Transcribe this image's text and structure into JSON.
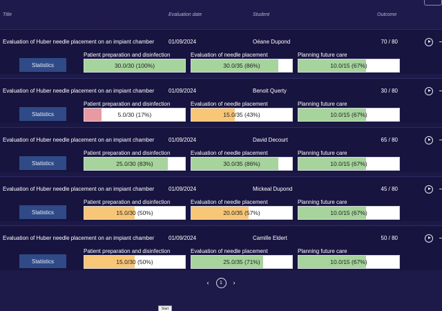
{
  "header": {
    "title": "Title",
    "date": "Evaluation date",
    "student": "Student",
    "outcome": "Outcome"
  },
  "statistics_label": "Statistics",
  "criteria_labels": [
    "Patient preparation and disinfection",
    "Evaluation of needle placement",
    "Planning future care"
  ],
  "colors": {
    "good": "#a6d49c",
    "medium": "#f8c677",
    "low": "#e89aa2"
  },
  "rows": [
    {
      "title": "Evaluation of Huber needle placement on an impiant chamber",
      "date": "01/09/2024",
      "student": "Oéane Dupond",
      "outcome": "70 / 80",
      "scores": [
        {
          "text": "30.0/30 (100%)",
          "pct": 100,
          "level": "good"
        },
        {
          "text": "30.0/35 (86%)",
          "pct": 86,
          "level": "good"
        },
        {
          "text": "10.0/15 (67%)",
          "pct": 67,
          "level": "good"
        }
      ]
    },
    {
      "title": "Evaluation of Huber needle placement on an impiant chamber",
      "date": "01/09/2024",
      "student": "Benoit Querty",
      "outcome": "30 / 80",
      "scores": [
        {
          "text": "5.0/30 (17%)",
          "pct": 17,
          "level": "low"
        },
        {
          "text": "15.0/35 (43%)",
          "pct": 43,
          "level": "medium"
        },
        {
          "text": "10.0/15 (67%)",
          "pct": 67,
          "level": "good"
        }
      ]
    },
    {
      "title": "Evaluation of Huber needle placement on an impiant chamber",
      "date": "01/09/2024",
      "student": "David Decourt",
      "outcome": "65 / 80",
      "scores": [
        {
          "text": "25.0/30 (83%)",
          "pct": 83,
          "level": "good"
        },
        {
          "text": "30.0/35 (86%)",
          "pct": 86,
          "level": "good"
        },
        {
          "text": "10.0/15 (67%)",
          "pct": 67,
          "level": "good"
        }
      ]
    },
    {
      "title": "Evaluation of Huber needle placement on an impiant chamber",
      "date": "01/09/2024",
      "student": "Mickeal Dupond",
      "outcome": "45 / 80",
      "scores": [
        {
          "text": "15.0/30 (50%)",
          "pct": 50,
          "level": "medium"
        },
        {
          "text": "20.0/35 (57%)",
          "pct": 57,
          "level": "medium"
        },
        {
          "text": "10.0/15 (67%)",
          "pct": 67,
          "level": "good"
        }
      ]
    },
    {
      "title": "Evaluation of Huber needle placement on an impiant chamber",
      "date": "01/09/2024",
      "student": "Camille Eldert",
      "outcome": "50 / 80",
      "scores": [
        {
          "text": "15.0/30 (50%)",
          "pct": 50,
          "level": "medium"
        },
        {
          "text": "25.0/35 (71%)",
          "pct": 71,
          "level": "good"
        },
        {
          "text": "10.0/15 (67%)",
          "pct": 67,
          "level": "good"
        }
      ]
    }
  ],
  "pagination": {
    "prev": "‹",
    "current": "1",
    "next": "›"
  },
  "start_button": "Start"
}
